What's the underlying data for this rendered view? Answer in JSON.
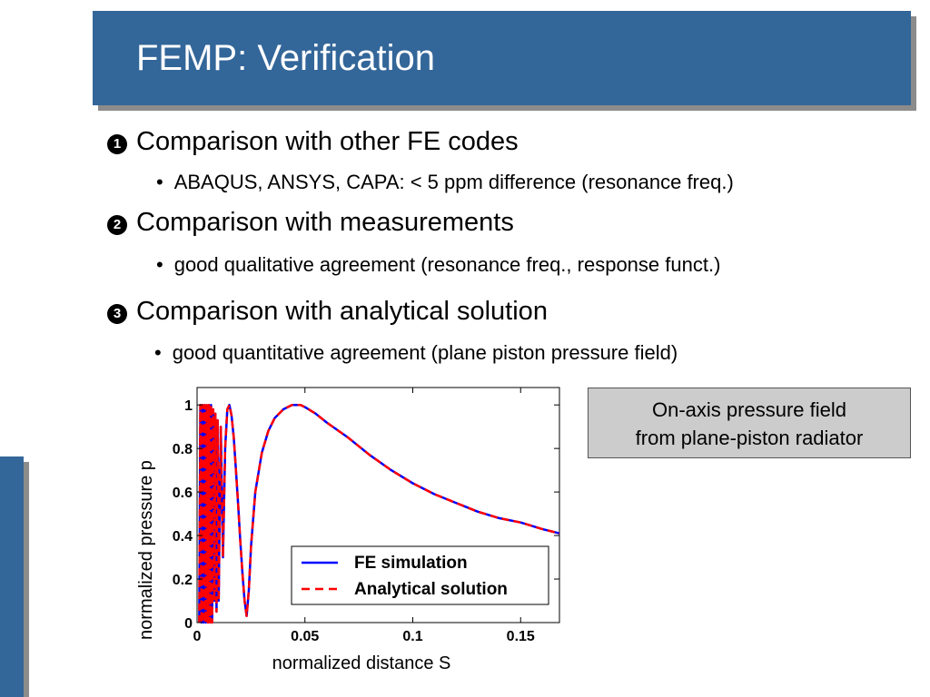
{
  "title": "FEMP: Verification",
  "bullets": [
    {
      "marker": "1",
      "text": "Comparison with other FE codes",
      "sub": "ABAQUS, ANSYS, CAPA: < 5 ppm difference (resonance freq.)"
    },
    {
      "marker": "2",
      "text": "Comparison with measurements",
      "sub": "good qualitative agreement (resonance freq., response funct.)"
    },
    {
      "marker": "3",
      "text": "Comparison with analytical solution",
      "sub": "good quantitative agreement (plane piston pressure field)"
    }
  ],
  "sub_marker": "•",
  "info_box": {
    "line1": "On-axis pressure field",
    "line2": "from plane-piston radiator"
  },
  "colors": {
    "accent": "#336699",
    "fe_series": "#0000ff",
    "analytical_series": "#ff0000"
  },
  "chart_data": {
    "type": "line",
    "title": "",
    "xlabel": "normalized distance S",
    "ylabel": "normalized pressure p",
    "xlim": [
      0,
      0.168
    ],
    "ylim": [
      0,
      1.08
    ],
    "xticks": [
      0,
      0.05,
      0.1,
      0.15
    ],
    "xtick_labels": [
      "0",
      "0.05",
      "0.1",
      "0.15"
    ],
    "yticks": [
      0,
      0.2,
      0.4,
      0.6,
      0.8,
      1
    ],
    "ytick_labels": [
      "0",
      "0.2",
      "0.4",
      "0.6",
      "0.8",
      "1"
    ],
    "grid": false,
    "legend_position": "bottom-right",
    "series": [
      {
        "name": "FE simulation",
        "style": "solid",
        "x": [
          0.001,
          0.0015,
          0.002,
          0.0025,
          0.003,
          0.0035,
          0.004,
          0.0045,
          0.005,
          0.0055,
          0.006,
          0.0065,
          0.007,
          0.0075,
          0.008,
          0.0085,
          0.009,
          0.0095,
          0.01,
          0.011,
          0.012,
          0.013,
          0.014,
          0.015,
          0.016,
          0.017,
          0.018,
          0.019,
          0.02,
          0.021,
          0.022,
          0.023,
          0.024,
          0.025,
          0.027,
          0.03,
          0.033,
          0.036,
          0.04,
          0.044,
          0.048,
          0.05,
          0.055,
          0.06,
          0.07,
          0.08,
          0.09,
          0.1,
          0.11,
          0.12,
          0.13,
          0.14,
          0.15,
          0.16,
          0.168
        ],
        "y": [
          0,
          1,
          0,
          1,
          0,
          1,
          0,
          1,
          0,
          1,
          0,
          1,
          0,
          0.98,
          0.1,
          0.96,
          0.05,
          0.93,
          0.1,
          0.9,
          0.3,
          0.8,
          0.98,
          1,
          0.95,
          0.85,
          0.7,
          0.55,
          0.38,
          0.23,
          0.1,
          0.03,
          0.15,
          0.35,
          0.6,
          0.78,
          0.88,
          0.94,
          0.98,
          1,
          1,
          0.99,
          0.96,
          0.92,
          0.85,
          0.77,
          0.7,
          0.64,
          0.59,
          0.55,
          0.51,
          0.48,
          0.46,
          0.43,
          0.41
        ]
      },
      {
        "name": "Analytical solution",
        "style": "dashed",
        "x": [
          0.001,
          0.0015,
          0.002,
          0.0025,
          0.003,
          0.0035,
          0.004,
          0.0045,
          0.005,
          0.0055,
          0.006,
          0.0065,
          0.007,
          0.0075,
          0.008,
          0.0085,
          0.009,
          0.0095,
          0.01,
          0.011,
          0.012,
          0.013,
          0.014,
          0.015,
          0.016,
          0.017,
          0.018,
          0.019,
          0.02,
          0.021,
          0.022,
          0.023,
          0.024,
          0.025,
          0.027,
          0.03,
          0.033,
          0.036,
          0.04,
          0.044,
          0.048,
          0.05,
          0.055,
          0.06,
          0.07,
          0.08,
          0.09,
          0.1,
          0.11,
          0.12,
          0.13,
          0.14,
          0.15,
          0.16,
          0.168
        ],
        "y": [
          0,
          1,
          0,
          1,
          0,
          1,
          0,
          1,
          0,
          1,
          0,
          1,
          0,
          0.98,
          0.1,
          0.96,
          0.05,
          0.93,
          0.1,
          0.9,
          0.3,
          0.8,
          0.98,
          1,
          0.95,
          0.85,
          0.7,
          0.55,
          0.38,
          0.23,
          0.1,
          0.03,
          0.15,
          0.35,
          0.6,
          0.78,
          0.88,
          0.94,
          0.98,
          1,
          1,
          0.99,
          0.96,
          0.92,
          0.85,
          0.77,
          0.7,
          0.64,
          0.59,
          0.55,
          0.51,
          0.48,
          0.46,
          0.43,
          0.41
        ]
      }
    ]
  }
}
